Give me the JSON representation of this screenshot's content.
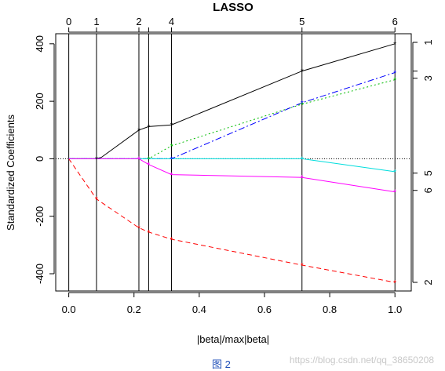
{
  "chart_data": {
    "type": "line",
    "title": "LASSO",
    "xlabel": "|beta|/max|beta|",
    "ylabel": "Standardized Coefficients",
    "xlim": [
      -0.04,
      1.05
    ],
    "ylim": [
      -460,
      435
    ],
    "x_ticks": [
      0.0,
      0.2,
      0.4,
      0.6,
      0.8,
      1.0
    ],
    "x_tick_labels": [
      "0.0",
      "0.2",
      "0.4",
      "0.6",
      "0.8",
      "1.0"
    ],
    "y_ticks": [
      -400,
      -200,
      0,
      200,
      400
    ],
    "y_tick_labels": [
      "-400",
      "-200",
      "0",
      "200",
      "400"
    ],
    "steps": [
      {
        "label": "0",
        "x": 0.0
      },
      {
        "label": "1",
        "x": 0.085
      },
      {
        "label": "2",
        "x": 0.215
      },
      {
        "label": "3",
        "x": 0.245
      },
      {
        "label": "4",
        "x": 0.315
      },
      {
        "label": "5",
        "x": 0.715
      },
      {
        "label": "6",
        "x": 1.0
      }
    ],
    "top_axis_labels": [
      "0",
      "1",
      "2",
      "4",
      "5",
      "6"
    ],
    "right_axis": [
      {
        "label": "1",
        "y": 405
      },
      {
        "label": "3",
        "y": 280
      },
      {
        "label": "5",
        "y": -50
      },
      {
        "label": "6",
        "y": -110
      },
      {
        "label": "2",
        "y": -430
      }
    ],
    "right_axis_extra_ticks": [
      305
    ],
    "series": [
      {
        "color": "#000000",
        "dash": "",
        "points": [
          [
            0,
            0
          ],
          [
            0.085,
            0
          ],
          [
            0.1,
            5
          ],
          [
            0.215,
            100
          ],
          [
            0.245,
            112
          ],
          [
            0.315,
            118
          ],
          [
            0.715,
            305
          ],
          [
            1.0,
            400
          ]
        ]
      },
      {
        "color": "#ff0000",
        "dash": "6,4",
        "points": [
          [
            0,
            0
          ],
          [
            0.085,
            -140
          ],
          [
            0.215,
            -240
          ],
          [
            0.245,
            -255
          ],
          [
            0.315,
            -280
          ],
          [
            0.715,
            -370
          ],
          [
            1.0,
            -430
          ]
        ]
      },
      {
        "color": "#00bb00",
        "dash": "2,3",
        "points": [
          [
            0,
            0
          ],
          [
            0.245,
            0
          ],
          [
            0.315,
            45
          ],
          [
            0.715,
            190
          ],
          [
            1.0,
            275
          ]
        ]
      },
      {
        "color": "#0000ff",
        "dash": "8,3,2,3",
        "points": [
          [
            0,
            0
          ],
          [
            0.315,
            0
          ],
          [
            0.715,
            195
          ],
          [
            1.0,
            300
          ]
        ]
      },
      {
        "color": "#00dddd",
        "dash": "",
        "points": [
          [
            0,
            0
          ],
          [
            0.715,
            0
          ],
          [
            1.0,
            -45
          ]
        ]
      },
      {
        "color": "#ff00ff",
        "dash": "",
        "points": [
          [
            0,
            0
          ],
          [
            0.215,
            0
          ],
          [
            0.245,
            -20
          ],
          [
            0.315,
            -55
          ],
          [
            0.715,
            -65
          ],
          [
            1.0,
            -115
          ]
        ]
      }
    ],
    "grid": false,
    "zero_line": true
  },
  "caption": {
    "label": "图 2",
    "watermark": "https://blog.csdn.net/qq_38650208"
  }
}
